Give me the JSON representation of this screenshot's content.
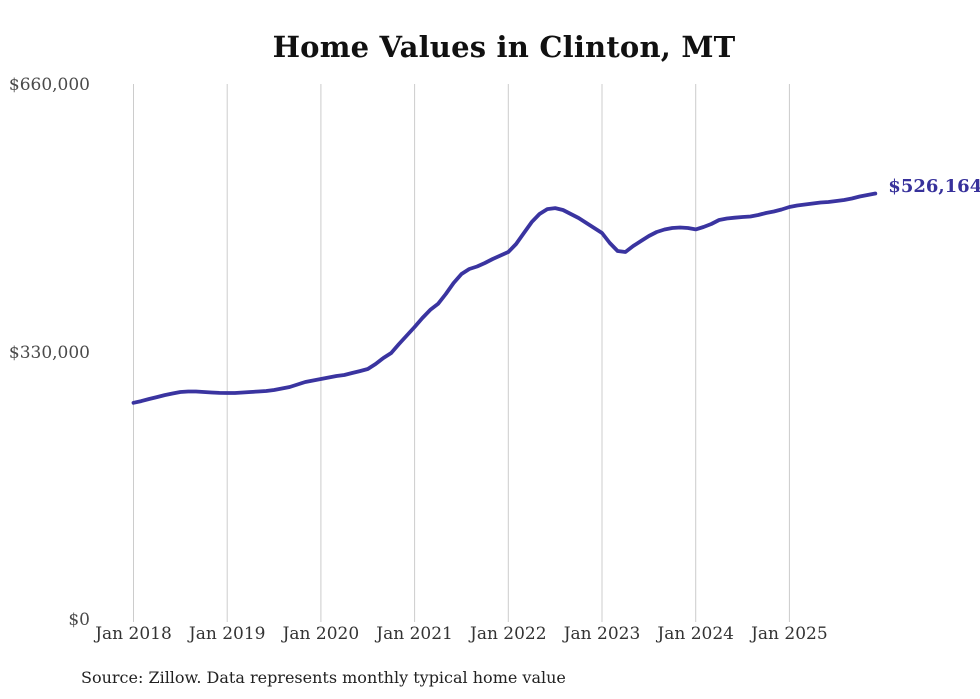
{
  "chart": {
    "title": "Home Values in Clinton, MT",
    "end_label": "$526,164",
    "source": "Source: Zillow. Data represents monthly typical home value",
    "colors": {
      "line": "#3a34a0",
      "grid": "#cccccc",
      "axis_text": "#4a4a4a",
      "end_label_text": "#37319b"
    }
  },
  "chart_data": {
    "type": "line",
    "title": "Home Values in Clinton, MT",
    "ylabel": "",
    "xlabel": "",
    "ylim": [
      0,
      660000
    ],
    "grid": "vertical-only",
    "legend": "none",
    "annotation": {
      "text": "$526,164",
      "position": "line-end"
    },
    "source": "Source: Zillow. Data represents monthly typical home value",
    "y_ticks": [
      {
        "value": 0,
        "label": "$0"
      },
      {
        "value": 330000,
        "label": "$330,000"
      },
      {
        "value": 660000,
        "label": "$660,000"
      }
    ],
    "x_ticks": [
      {
        "month": "2018-01",
        "label": "Jan 2018"
      },
      {
        "month": "2019-01",
        "label": "Jan 2019"
      },
      {
        "month": "2020-01",
        "label": "Jan 2020"
      },
      {
        "month": "2021-01",
        "label": "Jan 2021"
      },
      {
        "month": "2022-01",
        "label": "Jan 2022"
      },
      {
        "month": "2023-01",
        "label": "Jan 2023"
      },
      {
        "month": "2024-01",
        "label": "Jan 2024"
      },
      {
        "month": "2025-01",
        "label": "Jan 2025"
      }
    ],
    "x": [
      "2018-01",
      "2018-02",
      "2018-03",
      "2018-04",
      "2018-05",
      "2018-06",
      "2018-07",
      "2018-08",
      "2018-09",
      "2018-10",
      "2018-11",
      "2018-12",
      "2019-01",
      "2019-02",
      "2019-03",
      "2019-04",
      "2019-05",
      "2019-06",
      "2019-07",
      "2019-08",
      "2019-09",
      "2019-10",
      "2019-11",
      "2019-12",
      "2020-01",
      "2020-02",
      "2020-03",
      "2020-04",
      "2020-05",
      "2020-06",
      "2020-07",
      "2020-08",
      "2020-09",
      "2020-10",
      "2020-11",
      "2020-12",
      "2021-01",
      "2021-02",
      "2021-03",
      "2021-04",
      "2021-05",
      "2021-06",
      "2021-07",
      "2021-08",
      "2021-09",
      "2021-10",
      "2021-11",
      "2021-12",
      "2022-01",
      "2022-02",
      "2022-03",
      "2022-04",
      "2022-05",
      "2022-06",
      "2022-07",
      "2022-08",
      "2022-09",
      "2022-10",
      "2022-11",
      "2022-12",
      "2023-01",
      "2023-02",
      "2023-03",
      "2023-04",
      "2023-05",
      "2023-06",
      "2023-07",
      "2023-08",
      "2023-09",
      "2023-10",
      "2023-11",
      "2023-12",
      "2024-01",
      "2024-02",
      "2024-03",
      "2024-04",
      "2024-05",
      "2024-06",
      "2024-07",
      "2024-08",
      "2024-09",
      "2024-10",
      "2024-11",
      "2024-12",
      "2025-01",
      "2025-02",
      "2025-03",
      "2025-04",
      "2025-05",
      "2025-06",
      "2025-07",
      "2025-08",
      "2025-09",
      "2025-10",
      "2025-11",
      "2025-12"
    ],
    "series": [
      {
        "name": "Typical home value",
        "values": [
          268000,
          270100,
          272600,
          275000,
          277500,
          279400,
          281300,
          281900,
          281900,
          281300,
          280700,
          280100,
          280000,
          280000,
          280700,
          281300,
          281900,
          282500,
          283700,
          285600,
          287400,
          290500,
          293600,
          295400,
          297300,
          299200,
          301000,
          302200,
          304700,
          307100,
          309600,
          315800,
          323200,
          329400,
          340500,
          351000,
          361400,
          372600,
          382500,
          389900,
          402200,
          415700,
          426800,
          433000,
          436100,
          440400,
          445300,
          449700,
          454000,
          463800,
          477400,
          490900,
          500800,
          506900,
          508200,
          505800,
          500800,
          495900,
          489700,
          483600,
          477400,
          465100,
          455200,
          454000,
          461400,
          467500,
          473700,
          478600,
          481700,
          483600,
          484200,
          483600,
          481900,
          484800,
          488500,
          493500,
          495300,
          496300,
          497200,
          497800,
          499600,
          502100,
          503900,
          506400,
          509500,
          511300,
          512600,
          513800,
          515000,
          515700,
          516900,
          518100,
          520000,
          522400,
          524300,
          526164
        ]
      }
    ]
  }
}
